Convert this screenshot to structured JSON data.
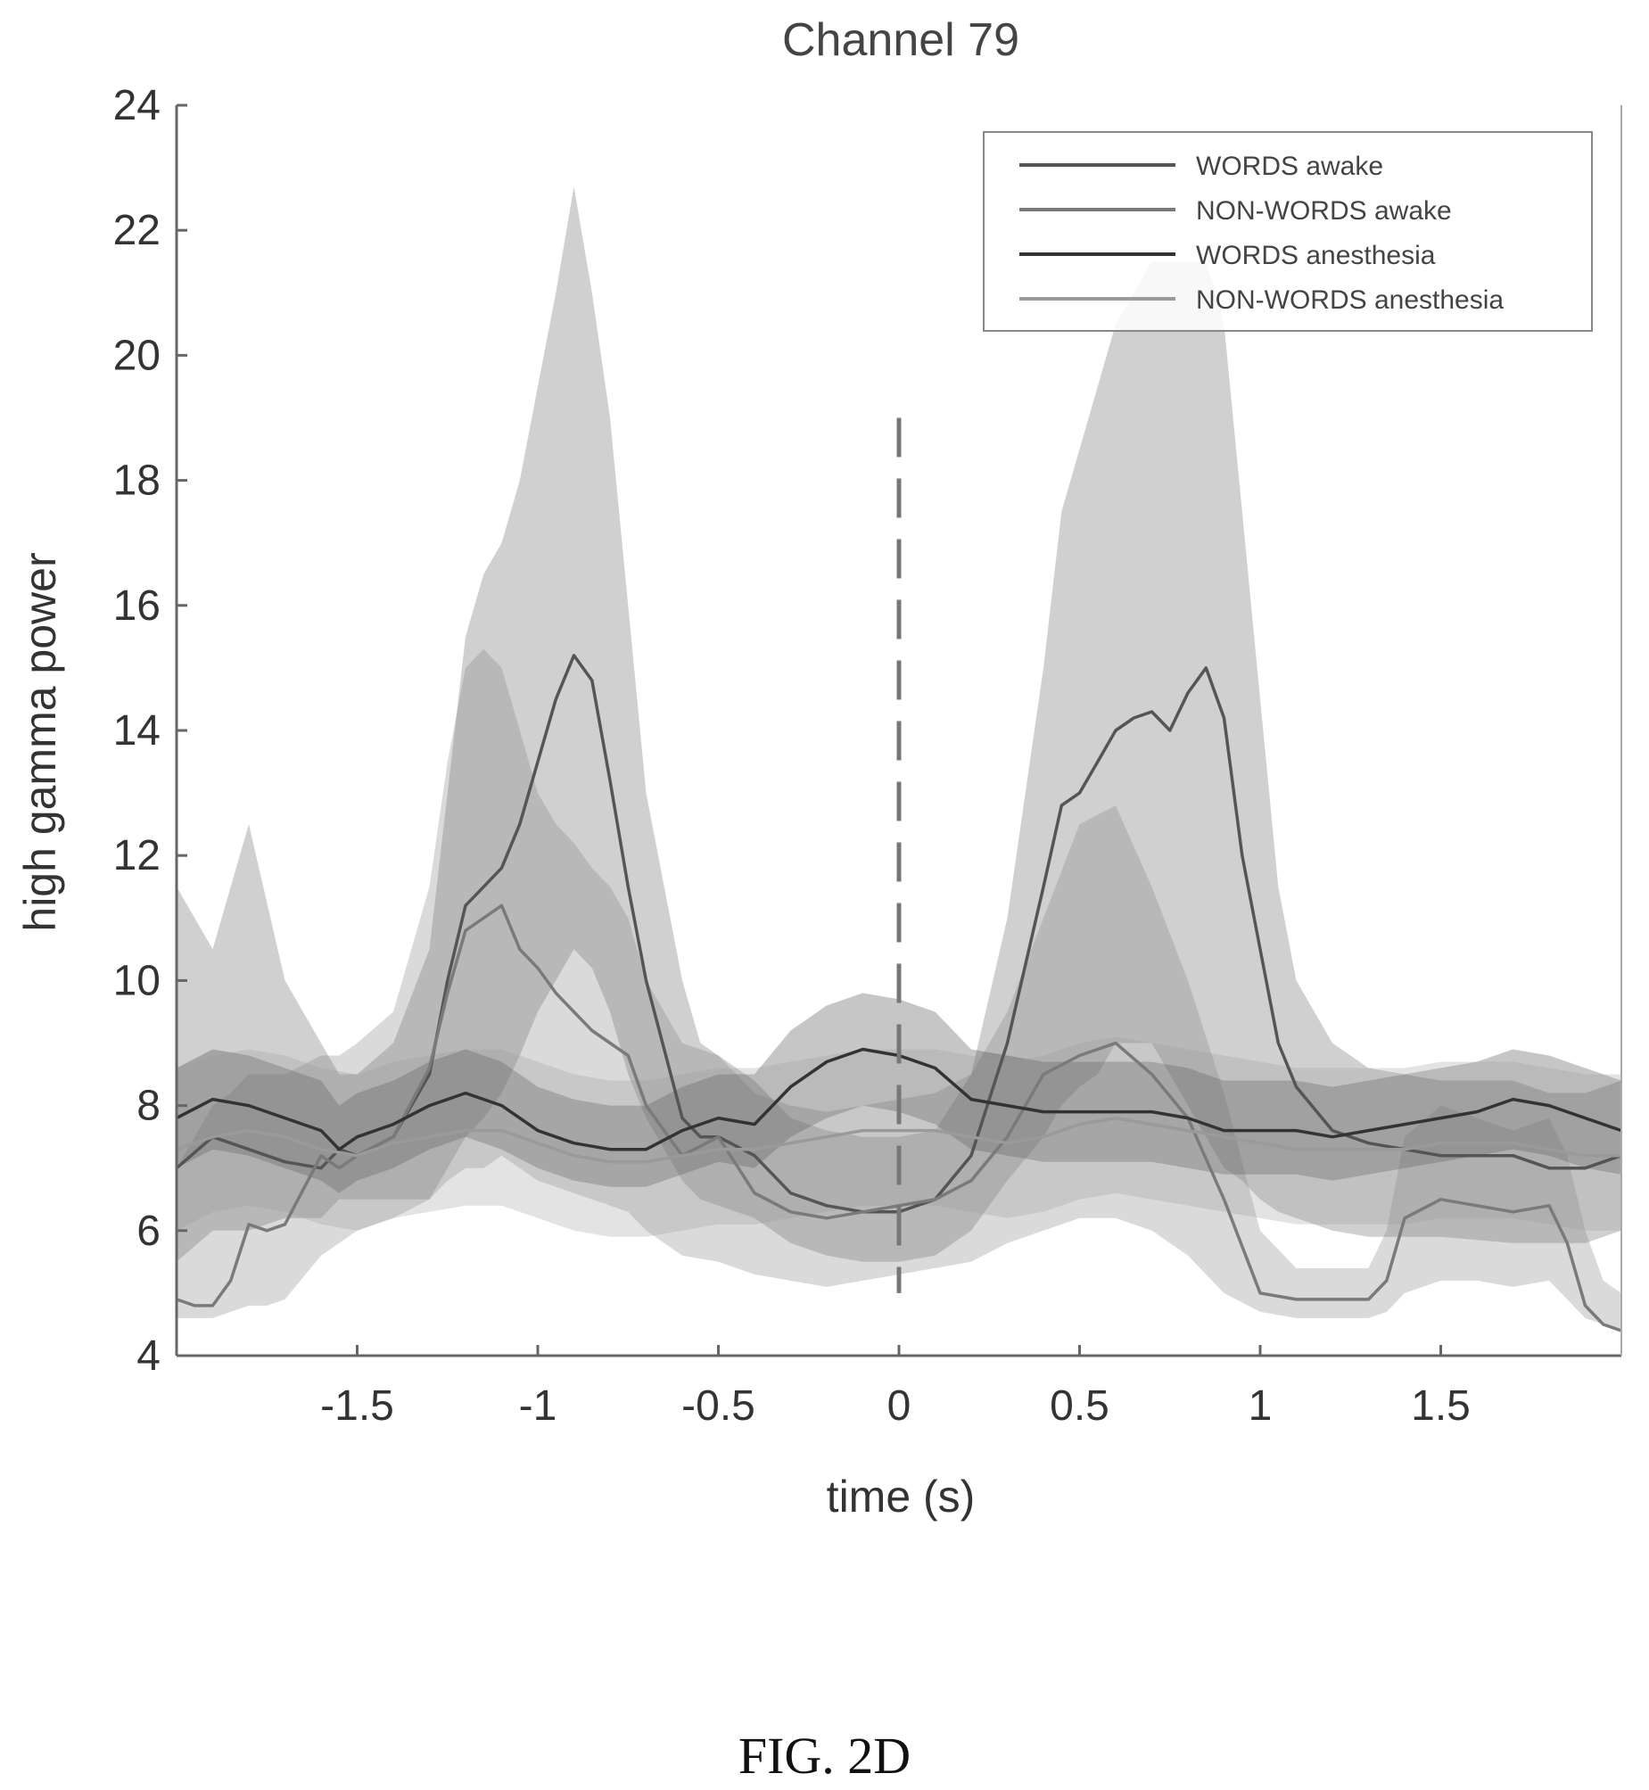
{
  "chart_data": {
    "type": "line",
    "title": "Channel 79",
    "xlabel": "time (s)",
    "ylabel": "high gamma power",
    "xlim": [
      -2,
      2
    ],
    "ylim": [
      4,
      24
    ],
    "xticks": [
      -1.5,
      -1,
      -0.5,
      0,
      0.5,
      1,
      1.5
    ],
    "xtick_labels": [
      "-1.5",
      "-1",
      "-0.5",
      "0",
      "0.5",
      "1",
      "1.5"
    ],
    "yticks": [
      4,
      6,
      8,
      10,
      12,
      14,
      16,
      18,
      20,
      22,
      24
    ],
    "ytick_labels": [
      "4",
      "6",
      "8",
      "10",
      "12",
      "14",
      "16",
      "18",
      "20",
      "22",
      "24"
    ],
    "grid": false,
    "legend_position": "top-right",
    "stimulus_line": {
      "x": 0,
      "y_range": [
        5,
        19
      ],
      "style": "dashed"
    },
    "series": [
      {
        "name": "WORDS awake",
        "color": "#555555",
        "x": [
          -2.0,
          -1.9,
          -1.85,
          -1.8,
          -1.7,
          -1.6,
          -1.55,
          -1.5,
          -1.4,
          -1.3,
          -1.25,
          -1.2,
          -1.15,
          -1.1,
          -1.05,
          -1.0,
          -0.95,
          -0.9,
          -0.85,
          -0.8,
          -0.75,
          -0.7,
          -0.6,
          -0.55,
          -0.5,
          -0.4,
          -0.3,
          -0.2,
          -0.1,
          0.0,
          0.1,
          0.2,
          0.3,
          0.4,
          0.45,
          0.5,
          0.55,
          0.6,
          0.65,
          0.7,
          0.75,
          0.8,
          0.85,
          0.9,
          0.95,
          1.0,
          1.05,
          1.1,
          1.2,
          1.3,
          1.5,
          1.7,
          1.8,
          1.9,
          2.0
        ],
        "y": [
          7.0,
          7.5,
          7.4,
          7.3,
          7.1,
          7.0,
          7.3,
          7.2,
          7.5,
          8.5,
          10.0,
          11.2,
          11.5,
          11.8,
          12.5,
          13.5,
          14.5,
          15.2,
          14.8,
          13.2,
          11.5,
          10.0,
          7.8,
          7.5,
          7.5,
          7.2,
          6.6,
          6.4,
          6.3,
          6.3,
          6.5,
          7.2,
          9.0,
          11.5,
          12.8,
          13.0,
          13.5,
          14.0,
          14.2,
          14.3,
          14.0,
          14.6,
          15.0,
          14.2,
          12.0,
          10.5,
          9.0,
          8.3,
          7.6,
          7.4,
          7.2,
          7.2,
          7.0,
          7.0,
          7.2
        ],
        "band_lower": [
          5.5,
          6.0,
          6.0,
          6.0,
          6.2,
          6.2,
          6.5,
          6.5,
          6.5,
          6.5,
          7.0,
          7.5,
          7.8,
          8.2,
          8.8,
          9.5,
          10.0,
          10.5,
          10.2,
          9.5,
          8.5,
          7.8,
          6.8,
          6.5,
          6.4,
          6.2,
          5.8,
          5.6,
          5.5,
          5.5,
          5.6,
          6.0,
          6.8,
          7.5,
          8.0,
          8.3,
          8.5,
          9.0,
          9.0,
          9.0,
          8.5,
          8.0,
          7.5,
          7.0,
          6.8,
          6.5,
          6.3,
          6.2,
          6.0,
          5.9,
          5.9,
          5.8,
          5.8,
          5.8,
          6.0
        ],
        "band_upper": [
          11.5,
          10.5,
          11.5,
          12.5,
          10.0,
          9.0,
          8.5,
          8.5,
          9.0,
          10.5,
          13.0,
          15.5,
          16.5,
          17.0,
          18.0,
          19.5,
          21.0,
          22.7,
          21.0,
          19.0,
          16.0,
          13.0,
          10.0,
          9.0,
          8.8,
          8.4,
          7.8,
          7.6,
          7.5,
          7.5,
          7.6,
          8.5,
          11.0,
          15.0,
          17.5,
          18.5,
          19.5,
          20.5,
          21.0,
          21.5,
          21.5,
          21.5,
          21.5,
          20.5,
          17.5,
          14.5,
          11.5,
          10.0,
          9.0,
          8.6,
          8.4,
          8.4,
          8.2,
          8.2,
          8.4
        ]
      },
      {
        "name": "NON-WORDS awake",
        "color": "#7a7a7a",
        "x": [
          -2.0,
          -1.95,
          -1.9,
          -1.85,
          -1.8,
          -1.75,
          -1.7,
          -1.6,
          -1.55,
          -1.5,
          -1.4,
          -1.3,
          -1.25,
          -1.2,
          -1.15,
          -1.1,
          -1.05,
          -1.0,
          -0.95,
          -0.9,
          -0.85,
          -0.8,
          -0.75,
          -0.7,
          -0.6,
          -0.5,
          -0.4,
          -0.3,
          -0.2,
          -0.1,
          0.0,
          0.1,
          0.2,
          0.3,
          0.4,
          0.5,
          0.6,
          0.7,
          0.8,
          0.9,
          1.0,
          1.1,
          1.2,
          1.3,
          1.35,
          1.4,
          1.5,
          1.6,
          1.7,
          1.8,
          1.85,
          1.9,
          1.95,
          2.0
        ],
        "y": [
          4.9,
          4.8,
          4.8,
          5.2,
          6.1,
          6.0,
          6.1,
          7.2,
          7.0,
          7.2,
          7.5,
          8.6,
          9.8,
          10.8,
          11.0,
          11.2,
          10.5,
          10.2,
          9.8,
          9.5,
          9.2,
          9.0,
          8.8,
          8.0,
          7.2,
          7.5,
          6.6,
          6.3,
          6.2,
          6.3,
          6.4,
          6.5,
          6.8,
          7.5,
          8.5,
          8.8,
          9.0,
          8.5,
          7.8,
          6.5,
          5.0,
          4.9,
          4.9,
          4.9,
          5.2,
          6.2,
          6.5,
          6.4,
          6.3,
          6.4,
          5.8,
          4.8,
          4.5,
          4.4
        ],
        "band_lower": [
          4.6,
          4.6,
          4.6,
          4.7,
          4.8,
          4.8,
          4.9,
          5.6,
          5.8,
          6.0,
          6.2,
          6.5,
          6.8,
          7.0,
          7.0,
          7.2,
          7.0,
          6.8,
          6.7,
          6.6,
          6.5,
          6.4,
          6.3,
          6.0,
          5.6,
          5.5,
          5.3,
          5.2,
          5.1,
          5.2,
          5.3,
          5.4,
          5.5,
          5.8,
          6.0,
          6.2,
          6.2,
          6.0,
          5.6,
          5.0,
          4.7,
          4.6,
          4.6,
          4.6,
          4.7,
          5.0,
          5.2,
          5.2,
          5.1,
          5.2,
          4.9,
          4.6,
          4.5,
          4.4
        ],
        "band_upper": [
          7.0,
          7.5,
          8.0,
          8.2,
          8.5,
          8.5,
          8.5,
          8.8,
          8.8,
          9.0,
          9.5,
          11.5,
          13.5,
          15.0,
          15.3,
          15.0,
          14.0,
          13.0,
          12.5,
          12.2,
          11.8,
          11.5,
          11.0,
          10.0,
          9.0,
          8.8,
          8.2,
          8.0,
          7.9,
          8.0,
          8.1,
          8.2,
          8.5,
          9.5,
          11.0,
          12.5,
          12.8,
          11.5,
          10.0,
          8.2,
          6.0,
          5.4,
          5.4,
          5.4,
          6.0,
          7.5,
          8.0,
          7.8,
          7.6,
          7.8,
          7.2,
          6.0,
          5.2,
          5.0
        ]
      },
      {
        "name": "WORDS anesthesia",
        "color": "#333333",
        "x": [
          -2.0,
          -1.9,
          -1.8,
          -1.7,
          -1.6,
          -1.55,
          -1.5,
          -1.4,
          -1.3,
          -1.2,
          -1.1,
          -1.0,
          -0.9,
          -0.8,
          -0.7,
          -0.6,
          -0.5,
          -0.4,
          -0.3,
          -0.2,
          -0.1,
          0.0,
          0.1,
          0.2,
          0.3,
          0.4,
          0.5,
          0.6,
          0.7,
          0.8,
          0.9,
          1.0,
          1.1,
          1.2,
          1.3,
          1.4,
          1.5,
          1.6,
          1.7,
          1.8,
          1.9,
          2.0
        ],
        "y": [
          7.8,
          8.1,
          8.0,
          7.8,
          7.6,
          7.3,
          7.5,
          7.7,
          8.0,
          8.2,
          8.0,
          7.6,
          7.4,
          7.3,
          7.3,
          7.6,
          7.8,
          7.7,
          8.3,
          8.7,
          8.9,
          8.8,
          8.6,
          8.1,
          8.0,
          7.9,
          7.9,
          7.9,
          7.9,
          7.8,
          7.6,
          7.6,
          7.6,
          7.5,
          7.6,
          7.7,
          7.8,
          7.9,
          8.1,
          8.0,
          7.8,
          7.6
        ],
        "band_lower": [
          7.0,
          7.3,
          7.2,
          7.0,
          6.8,
          6.6,
          6.8,
          7.0,
          7.3,
          7.5,
          7.3,
          7.0,
          6.8,
          6.7,
          6.7,
          6.9,
          7.1,
          7.0,
          7.5,
          7.8,
          8.0,
          7.9,
          7.7,
          7.3,
          7.2,
          7.1,
          7.1,
          7.1,
          7.1,
          7.0,
          6.9,
          6.9,
          6.9,
          6.8,
          6.9,
          7.0,
          7.1,
          7.2,
          7.3,
          7.2,
          7.0,
          6.9
        ],
        "band_upper": [
          8.6,
          8.9,
          8.8,
          8.6,
          8.4,
          8.0,
          8.2,
          8.4,
          8.7,
          8.9,
          8.7,
          8.3,
          8.1,
          8.0,
          8.0,
          8.3,
          8.5,
          8.5,
          9.2,
          9.6,
          9.8,
          9.7,
          9.5,
          8.9,
          8.8,
          8.7,
          8.7,
          8.7,
          8.7,
          8.6,
          8.4,
          8.4,
          8.4,
          8.3,
          8.4,
          8.5,
          8.6,
          8.7,
          8.9,
          8.8,
          8.6,
          8.4
        ]
      },
      {
        "name": "NON-WORDS anesthesia",
        "color": "#9a9a9a",
        "x": [
          -2.0,
          -1.9,
          -1.8,
          -1.7,
          -1.6,
          -1.5,
          -1.4,
          -1.3,
          -1.2,
          -1.1,
          -1.0,
          -0.9,
          -0.8,
          -0.7,
          -0.6,
          -0.5,
          -0.4,
          -0.3,
          -0.2,
          -0.1,
          0.0,
          0.1,
          0.2,
          0.3,
          0.4,
          0.5,
          0.6,
          0.7,
          0.8,
          0.9,
          1.0,
          1.1,
          1.2,
          1.3,
          1.4,
          1.5,
          1.6,
          1.7,
          1.8,
          1.9,
          2.0
        ],
        "y": [
          7.3,
          7.5,
          7.6,
          7.5,
          7.3,
          7.2,
          7.4,
          7.5,
          7.6,
          7.6,
          7.4,
          7.2,
          7.1,
          7.1,
          7.2,
          7.3,
          7.3,
          7.4,
          7.5,
          7.6,
          7.6,
          7.6,
          7.5,
          7.4,
          7.5,
          7.7,
          7.8,
          7.7,
          7.6,
          7.5,
          7.4,
          7.3,
          7.3,
          7.3,
          7.3,
          7.4,
          7.4,
          7.4,
          7.3,
          7.2,
          7.2
        ],
        "band_lower": [
          6.0,
          6.3,
          6.4,
          6.3,
          6.1,
          6.0,
          6.2,
          6.3,
          6.4,
          6.4,
          6.2,
          6.0,
          5.9,
          5.9,
          6.0,
          6.1,
          6.1,
          6.2,
          6.3,
          6.4,
          6.4,
          6.4,
          6.3,
          6.2,
          6.3,
          6.5,
          6.6,
          6.5,
          6.4,
          6.3,
          6.2,
          6.1,
          6.1,
          6.1,
          6.1,
          6.2,
          6.2,
          6.2,
          6.1,
          6.0,
          6.0
        ],
        "band_upper": [
          8.6,
          8.8,
          8.9,
          8.8,
          8.6,
          8.5,
          8.7,
          8.8,
          8.9,
          8.9,
          8.7,
          8.5,
          8.4,
          8.4,
          8.5,
          8.6,
          8.6,
          8.7,
          8.8,
          8.9,
          8.9,
          8.9,
          8.8,
          8.7,
          8.8,
          9.0,
          9.1,
          9.0,
          8.9,
          8.8,
          8.7,
          8.6,
          8.6,
          8.6,
          8.6,
          8.7,
          8.7,
          8.7,
          8.6,
          8.5,
          8.5
        ]
      }
    ]
  },
  "caption": "FIG. 2D"
}
